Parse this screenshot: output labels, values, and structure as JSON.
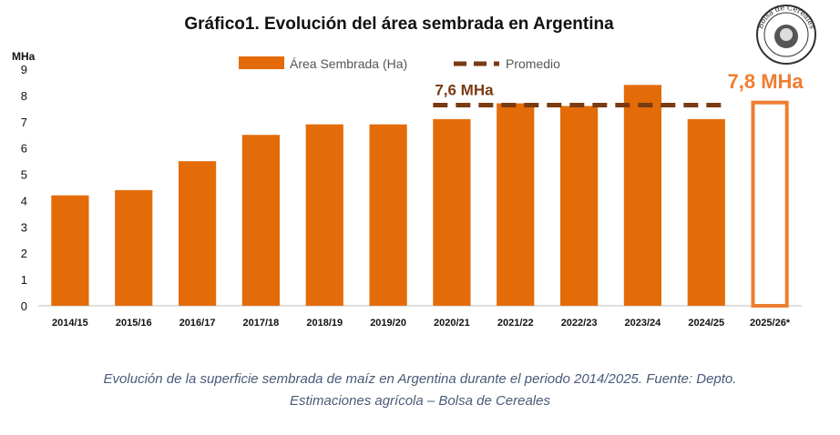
{
  "chart_data": {
    "type": "bar",
    "title": "Gráfico1. Evolución del área sembrada en Argentina",
    "unit_label": "MHa",
    "categories": [
      "2014/15",
      "2015/16",
      "2016/17",
      "2017/18",
      "2018/19",
      "2019/20",
      "2020/21",
      "2021/22",
      "2022/23",
      "2023/24",
      "2024/25",
      "2025/26*"
    ],
    "series": [
      {
        "name": "Área Sembrada (Ha)",
        "values": [
          4.2,
          4.4,
          5.5,
          6.5,
          6.9,
          6.9,
          7.1,
          7.7,
          7.6,
          8.4,
          7.1,
          7.8
        ],
        "color": "#e36c09"
      }
    ],
    "projected_index": 11,
    "projected_style": "outline",
    "average": {
      "name": "Promedio",
      "value": 7.6,
      "label": "7,6 MHa",
      "color": "#7a3a12",
      "from_index": 6,
      "to_index": 10
    },
    "projection_label": "7,8 MHa",
    "projection_color": "#ee7d31",
    "ylim": [
      0,
      9
    ],
    "yticks": [
      0,
      1,
      2,
      3,
      4,
      5,
      6,
      7,
      8,
      9
    ],
    "grid": false,
    "legend_position": "top"
  },
  "logo": {
    "text": "Bolsa de Cereales"
  },
  "caption": {
    "line1": "Evolución de la superficie sembrada de maíz en Argentina durante el periodo 2014/2025. Fuente: Depto.",
    "line2": "Estimaciones agrícola – Bolsa de Cereales"
  }
}
